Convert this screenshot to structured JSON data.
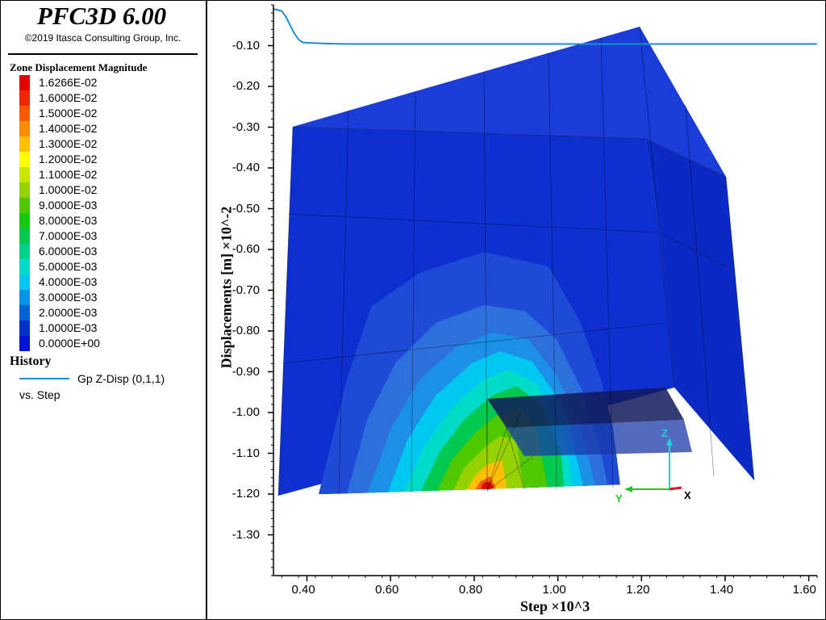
{
  "app": {
    "title": "PFC3D 6.00",
    "copyright": "©2019 Itasca Consulting Group, Inc."
  },
  "legend": {
    "title": "Zone Displacement Magnitude",
    "items": [
      {
        "label": "1.6266E-02",
        "color": "#e60000"
      },
      {
        "label": "1.6000E-02",
        "color": "#f02800"
      },
      {
        "label": "1.5000E-02",
        "color": "#f55a00"
      },
      {
        "label": "1.4000E-02",
        "color": "#f98c00"
      },
      {
        "label": "1.3000E-02",
        "color": "#ffbe00"
      },
      {
        "label": "1.2000E-02",
        "color": "#ffff00"
      },
      {
        "label": "1.1000E-02",
        "color": "#c8e600"
      },
      {
        "label": "1.0000E-02",
        "color": "#96d200"
      },
      {
        "label": "9.0000E-03",
        "color": "#50c800"
      },
      {
        "label": "8.0000E-03",
        "color": "#14c814"
      },
      {
        "label": "7.0000E-03",
        "color": "#00c850"
      },
      {
        "label": "6.0000E-03",
        "color": "#00d28c"
      },
      {
        "label": "5.0000E-03",
        "color": "#00dcc8"
      },
      {
        "label": "4.0000E-03",
        "color": "#00c8f0"
      },
      {
        "label": "3.0000E-03",
        "color": "#0096e6"
      },
      {
        "label": "2.0000E-03",
        "color": "#0064d2"
      },
      {
        "label": "1.0000E-03",
        "color": "#0032c8"
      },
      {
        "label": "0.0000E+00",
        "color": "#0014d2"
      }
    ]
  },
  "history": {
    "title": "History",
    "series_label": "Gp Z-Disp (0,1,1)",
    "vs_label": "vs. Step",
    "line_color": "#1f8dd6"
  },
  "axes": {
    "x_label": "Step ×10^3",
    "y_label": "Displacements [m] ×10^-2",
    "x_ticks": [
      "0.40",
      "0.60",
      "0.80",
      "1.00",
      "1.20",
      "1.40",
      "1.60"
    ],
    "y_ticks": [
      "-0.10",
      "-0.20",
      "-0.30",
      "-0.40",
      "-0.50",
      "-0.60",
      "-0.70",
      "-0.80",
      "-0.90",
      "-1.00",
      "-1.10",
      "-1.20",
      "-1.30"
    ],
    "triad": {
      "x": "X",
      "y": "Y",
      "z": "Z"
    }
  },
  "chart_data": {
    "type": "line",
    "title": "",
    "xlabel": "Step ×10^3",
    "ylabel": "Displacements [m] ×10^-2",
    "xlim": [
      0.32,
      1.62
    ],
    "ylim": [
      -1.4,
      0.0
    ],
    "series": [
      {
        "name": "Gp Z-Disp (0,1,1)",
        "x": [
          0.32,
          0.34,
          0.35,
          0.36,
          0.37,
          0.38,
          0.39,
          0.4,
          0.45,
          0.5,
          0.6,
          0.8,
          1.0,
          1.2,
          1.4,
          1.62
        ],
        "y": [
          -0.01,
          -0.015,
          -0.03,
          -0.05,
          -0.07,
          -0.085,
          -0.092,
          -0.093,
          -0.095,
          -0.096,
          -0.096,
          -0.096,
          -0.096,
          -0.096,
          -0.096,
          -0.096
        ]
      }
    ]
  }
}
